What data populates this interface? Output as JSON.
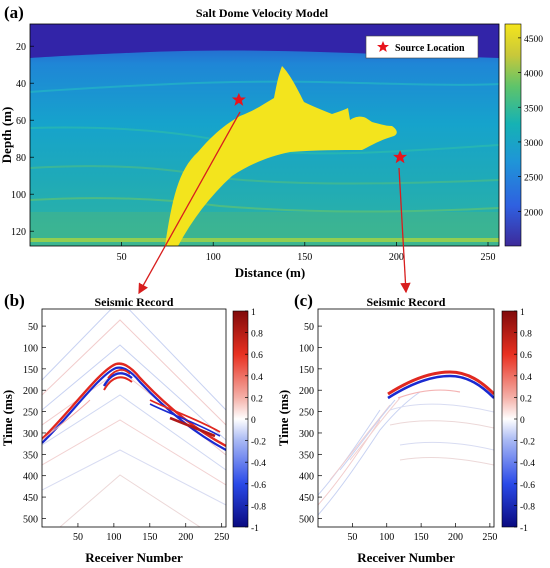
{
  "panel_a": {
    "label": "(a)",
    "title": "Salt Dome Velocity Model",
    "legend_label": "Source Location",
    "xlabel": "Distance (m)",
    "ylabel": "Depth (m)",
    "xticks": [
      "50",
      "100",
      "150",
      "200",
      "250"
    ],
    "yticks": [
      "20",
      "40",
      "60",
      "80",
      "100",
      "120"
    ],
    "colorbar_ticks": [
      "4500",
      "4000",
      "3500",
      "3000",
      "2500",
      "2000"
    ],
    "sources": [
      {
        "x": 114,
        "y": 49
      },
      {
        "x": 202,
        "y": 80
      }
    ]
  },
  "panel_b": {
    "label": "(b)",
    "title": "Seismic Record",
    "xlabel": "Receiver Number",
    "ylabel": "Time (ms)",
    "xticks": [
      "50",
      "100",
      "150",
      "200",
      "250"
    ],
    "yticks": [
      "50",
      "100",
      "150",
      "200",
      "250",
      "300",
      "350",
      "400",
      "450",
      "500"
    ],
    "colorbar_ticks": [
      "1",
      "0.8",
      "0.6",
      "0.4",
      "0.2",
      "0",
      "-0.2",
      "-0.4",
      "-0.6",
      "-0.8",
      "-1"
    ]
  },
  "panel_c": {
    "label": "(c)",
    "title": "Seismic Record",
    "xlabel": "Receiver Number",
    "ylabel": "Time (ms)",
    "xticks": [
      "50",
      "100",
      "150",
      "200",
      "250"
    ],
    "yticks": [
      "50",
      "100",
      "150",
      "200",
      "250",
      "300",
      "350",
      "400",
      "450",
      "500"
    ],
    "colorbar_ticks": [
      "1",
      "0.8",
      "0.6",
      "0.4",
      "0.2",
      "0",
      "-0.2",
      "-0.4",
      "-0.6",
      "-0.8",
      "-1"
    ]
  },
  "colors": {
    "salt": "#f3e41d",
    "source": "#e8141c",
    "arrow": "#d81e1e"
  }
}
